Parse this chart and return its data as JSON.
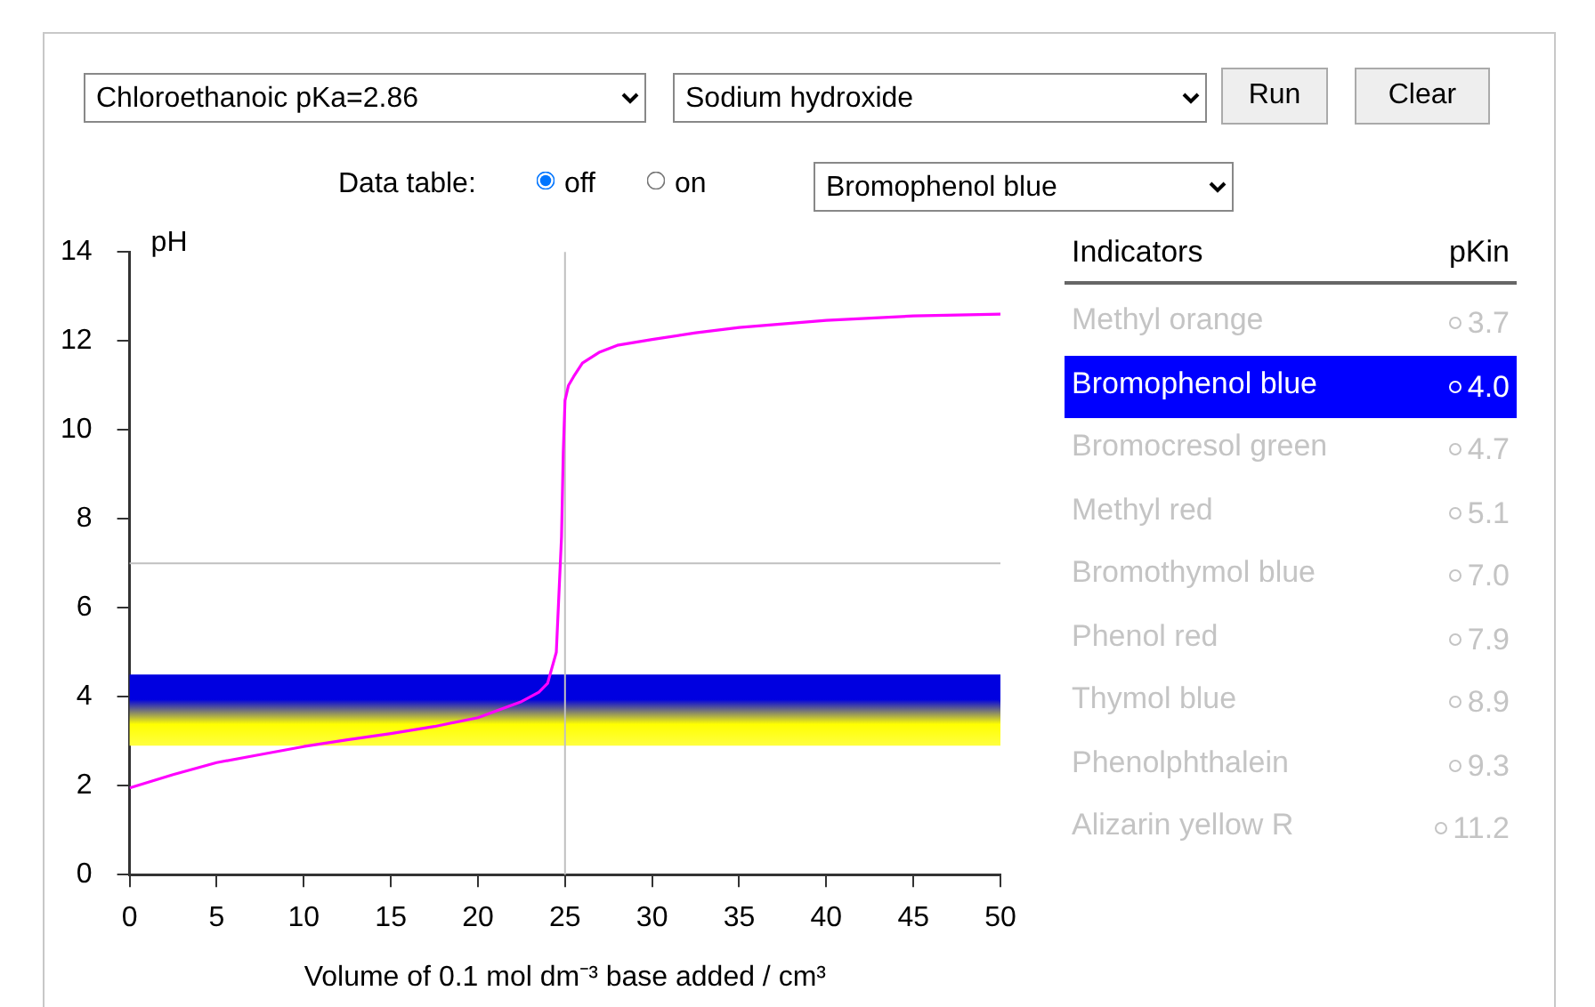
{
  "chart_data": [
    {
      "type": "other",
      "annotations": [
        "Chloroethanoic pKa=2.86",
        "Sodium hydroxide",
        "Run",
        "Clear",
        "Data table:",
        "off",
        "on",
        "Bromophenol blue"
      ]
    },
    {
      "type": "line",
      "xlabel": "Volume of 0.1 mol dm⁻³ base added / cm³",
      "ylabel": "pH",
      "xlim": [
        0,
        50
      ],
      "xticks": [
        0,
        5,
        10,
        15,
        20,
        25,
        30,
        35,
        40,
        45,
        50
      ],
      "ylim": [
        0,
        14
      ],
      "yticks": [
        0,
        2,
        4,
        6,
        8,
        10,
        12,
        14
      ],
      "grid": false,
      "legend": false,
      "marker": "none",
      "line_style": "solid",
      "series": [
        {
          "color": "#ff00ff",
          "x": [
            0,
            2.5,
            5,
            7.5,
            10,
            12.5,
            15,
            17.5,
            20,
            22.5,
            23.5,
            24,
            24.5,
            24.8,
            24.9,
            25,
            25.2,
            25.5,
            26,
            27,
            28,
            30,
            32.5,
            35,
            40,
            45,
            50
          ],
          "values": [
            1.95,
            2.25,
            2.52,
            2.7,
            2.88,
            3.03,
            3.17,
            3.33,
            3.53,
            3.89,
            4.1,
            4.3,
            5.0,
            7.6,
            9.5,
            10.66,
            11.0,
            11.2,
            11.5,
            11.75,
            11.9,
            12.03,
            12.18,
            12.3,
            12.46,
            12.56,
            12.6
          ]
        }
      ],
      "ref_lines": [
        {
          "axis": "x",
          "value": 25,
          "color": "#c0c0c0"
        },
        {
          "axis": "y",
          "value": 7,
          "color": "#c0c0c0"
        }
      ],
      "bands": [
        {
          "axis": "y",
          "from": 2.9,
          "to": 4.5,
          "color": "#0000e0"
        }
      ]
    },
    {
      "type": "other",
      "title": "Indicators",
      "ylabel": "pKin",
      "categories": [
        "Methyl orange",
        "Bromophenol blue",
        "Bromocresol green",
        "Methyl red",
        "Bromothymol blue",
        "Phenol red",
        "Thymol blue",
        "Phenolphthalein",
        "Alizarin yellow R"
      ],
      "value_labels": [
        "3.7",
        "4.0",
        "4.7",
        "5.1",
        "7.0",
        "7.9",
        "8.9",
        "9.3",
        "11.2"
      ],
      "colors": [
        "#ffffff",
        "#0000ff",
        "#ffffff",
        "#ffffff",
        "#ffffff",
        "#ffffff",
        "#ffffff",
        "#ffffff",
        "#ffffff"
      ]
    }
  ]
}
